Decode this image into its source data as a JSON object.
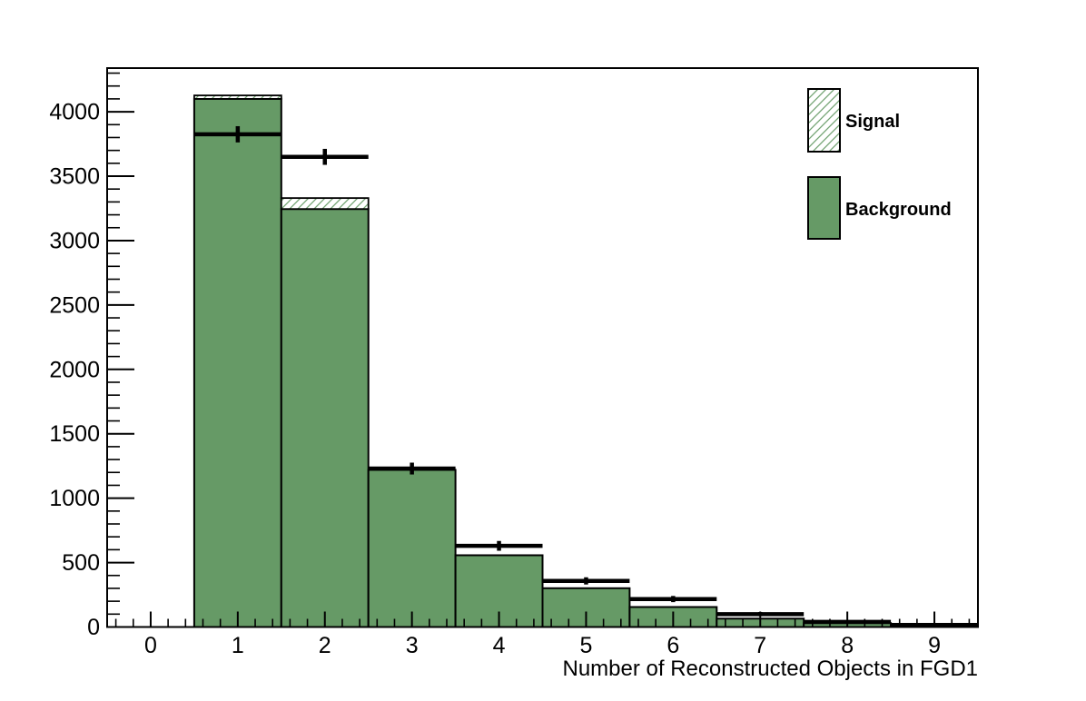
{
  "page": {
    "background_color": "#ffffff"
  },
  "chart_data": {
    "type": "bar",
    "subtype": "stacked-histogram-with-data-points",
    "title": "",
    "xlabel": "Number of Reconstructed Objects in FGD1",
    "ylabel": "",
    "xlim": [
      -0.5,
      9.5
    ],
    "ylim": [
      0,
      4339
    ],
    "grid": false,
    "bin_centers": [
      1,
      2,
      3,
      4,
      5,
      6,
      7,
      8,
      9
    ],
    "bin_width": 1,
    "x_major_ticks": [
      0,
      1,
      2,
      3,
      4,
      5,
      6,
      7,
      8,
      9
    ],
    "x_minor_step": 0.2,
    "y_major_ticks": [
      0,
      500,
      1000,
      1500,
      2000,
      2500,
      3000,
      3500,
      4000
    ],
    "y_minor_step": 100,
    "series": [
      {
        "name": "Background",
        "style": "solid",
        "color": "#669a66",
        "outline_color": "#000000",
        "values": [
          4100,
          3245,
          1220,
          557,
          301,
          155,
          65,
          30,
          15
        ]
      },
      {
        "name": "Signal",
        "style": "hatched",
        "hatch_line_color": "#74a474",
        "fill_color": "#ffffff",
        "outline_color": "#000000",
        "values": [
          27,
          85,
          0,
          0,
          0,
          0,
          0,
          0,
          0
        ]
      }
    ],
    "data_points": {
      "name": "Data",
      "marker": "horizontal-line-with-error-bar",
      "color": "#000000",
      "values": [
        3825,
        3650,
        1230,
        630,
        358,
        217,
        100,
        40,
        16
      ],
      "errors": [
        63,
        62,
        46,
        38,
        28,
        24,
        16,
        10,
        7
      ]
    },
    "legend": {
      "position": "top-right",
      "entries": [
        {
          "label": "Signal",
          "swatch": "hatched"
        },
        {
          "label": "Background",
          "swatch": "solid"
        }
      ]
    }
  },
  "colors": {
    "background_fill": "#669a66",
    "hatch_line": "#74a474",
    "axis_line": "#000000",
    "data_marker": "#000000"
  }
}
